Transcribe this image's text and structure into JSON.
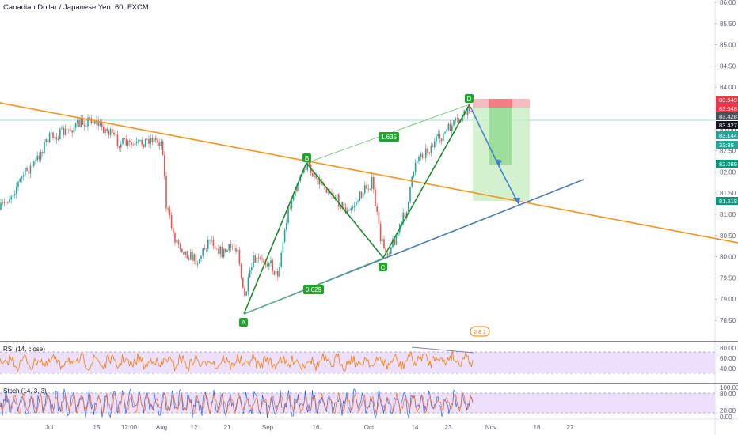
{
  "header": {
    "title": "Canadian Dollar / Japanese Yen, 60, FXCM"
  },
  "price_axis": {
    "ticks": [
      "86.00",
      "85.50",
      "85.00",
      "84.50",
      "84.00",
      "83.50",
      "83.00",
      "82.50",
      "82.00",
      "81.50",
      "81.00",
      "80.50",
      "80.00",
      "79.50",
      "79.00",
      "78.50"
    ],
    "tags": [
      {
        "label": "83.649",
        "color": "#f23645"
      },
      {
        "label": "83.648",
        "color": "#f23645"
      },
      {
        "label": "83.428",
        "color": "#4b4f5b"
      },
      {
        "label": "83.427",
        "color": "#131722"
      },
      {
        "label": "83.144",
        "color": "#26a69a"
      },
      {
        "label": "33:39",
        "color": "#26a69a"
      },
      {
        "label": "82.089",
        "color": "#089981"
      },
      {
        "label": "81.218",
        "color": "#089981"
      }
    ]
  },
  "time_axis": {
    "ticks": [
      "Jul",
      "15",
      "12:00",
      "Aug",
      "12",
      "21",
      "Sep",
      "16",
      "Oct",
      "14",
      "23",
      "Nov",
      "18",
      "27"
    ]
  },
  "pattern": {
    "points": [
      "A",
      "B",
      "C",
      "D"
    ],
    "ratios": [
      "1.635",
      "0.629"
    ]
  },
  "events_badge": "2 8 1",
  "rsi": {
    "label": "RSI (14, close)",
    "ticks": [
      "80.00",
      "60.00",
      "40.00",
      "20.00"
    ]
  },
  "stoch": {
    "label": "Stoch (14, 3, 3)",
    "ticks": [
      "100.00",
      "80.00",
      "20.00",
      "0.00"
    ]
  },
  "colors": {
    "candle_up": "#26a69a",
    "candle_down": "#ef5350",
    "trendline": "#f7931a",
    "support": "#4a7ebb",
    "pattern": "#22a32e",
    "rsi": "#f57c00",
    "stoch": "#7b61ff",
    "pane_fill": "#e9d8fd"
  }
}
